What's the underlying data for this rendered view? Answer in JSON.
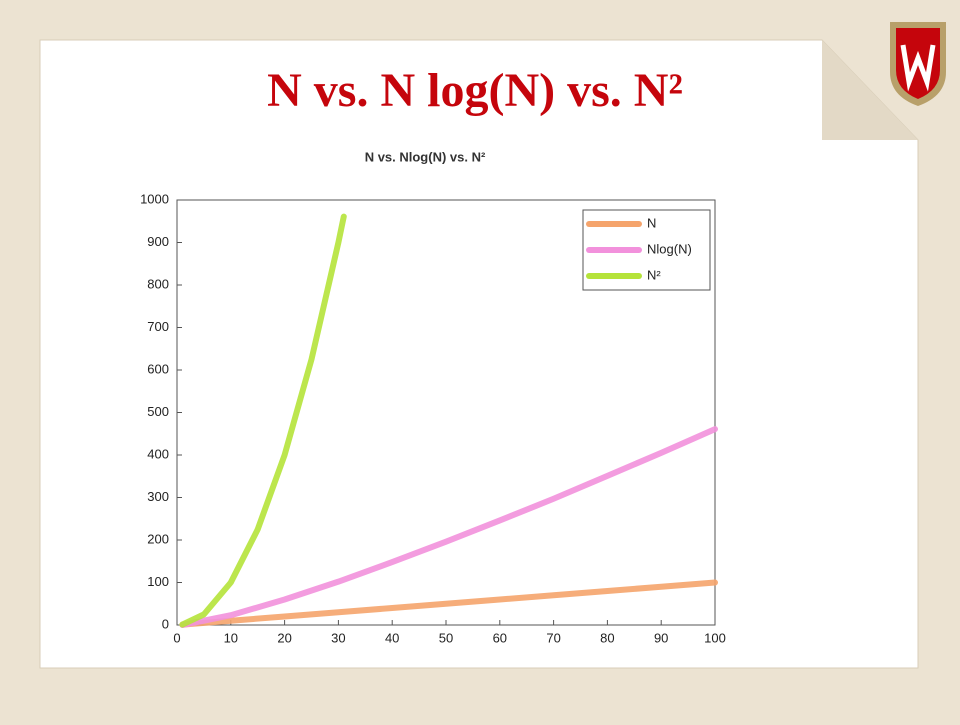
{
  "slide_title": "N vs. N log(N) vs. N²",
  "chart_data": {
    "type": "line",
    "title": "N vs. Nlog(N) vs. N²",
    "xlim": [
      0,
      100
    ],
    "xticks": [
      0,
      10,
      20,
      30,
      40,
      50,
      60,
      70,
      80,
      90,
      100
    ],
    "ylim": [
      0,
      1000
    ],
    "yticks": [
      0,
      100,
      200,
      300,
      400,
      500,
      600,
      700,
      800,
      900,
      1000
    ],
    "legend": "upper right",
    "series": [
      {
        "name": "N",
        "color": "#f5a46c",
        "x": [
          1,
          10,
          20,
          30,
          40,
          50,
          60,
          70,
          80,
          90,
          100
        ],
        "values": [
          1,
          10,
          20,
          30,
          40,
          50,
          60,
          70,
          80,
          90,
          100
        ]
      },
      {
        "name": "Nlog(N)",
        "color": "#f291dc",
        "x": [
          1,
          10,
          20,
          30,
          40,
          50,
          60,
          70,
          80,
          90,
          100
        ],
        "values": [
          0,
          23,
          60,
          102,
          148,
          196,
          246,
          297,
          351,
          405,
          461
        ]
      },
      {
        "name": "N²",
        "color": "#b5e33a",
        "x": [
          1,
          5,
          10,
          15,
          20,
          25,
          30,
          31
        ],
        "values": [
          1,
          25,
          100,
          225,
          400,
          625,
          900,
          961
        ]
      }
    ]
  }
}
